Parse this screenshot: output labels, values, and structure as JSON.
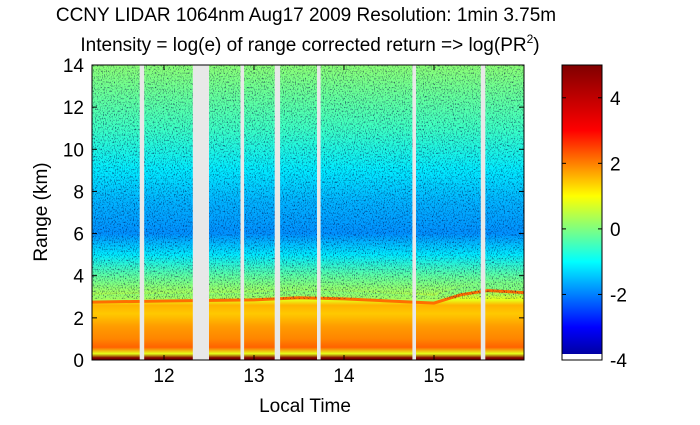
{
  "title": "CCNY LIDAR 1064nm Aug17 2009 Resolution: 1min 3.75m",
  "subtitle_prefix": "Intensity = log(e) of range corrected return => log(PR",
  "subtitle_sup": "2",
  "subtitle_suffix": ")",
  "chart_data": {
    "type": "heatmap",
    "xlabel": "Local Time",
    "ylabel": "Range (km)",
    "xlim": [
      11.2,
      16.0
    ],
    "ylim": [
      0,
      14
    ],
    "x_ticks": [
      12,
      13,
      14,
      15
    ],
    "y_ticks": [
      0,
      2,
      4,
      6,
      8,
      10,
      12,
      14
    ],
    "grid": false,
    "colormap": "jet",
    "colorbar": {
      "range": [
        -4,
        5
      ],
      "ticks": [
        -4,
        -2,
        0,
        2,
        4
      ],
      "position": "right"
    },
    "missing_data_color": "#e8e8e8",
    "data_gaps_local_time": [
      [
        11.73,
        11.78
      ],
      [
        12.32,
        12.5
      ],
      [
        12.85,
        12.89
      ],
      [
        13.23,
        13.29
      ],
      [
        13.7,
        13.74
      ],
      [
        14.76,
        14.8
      ],
      [
        15.52,
        15.57
      ]
    ],
    "profile_intensity_by_range": [
      {
        "range_km": 0.1,
        "value": 5.0
      },
      {
        "range_km": 0.3,
        "value": 1.4
      },
      {
        "range_km": 0.6,
        "value": 3.0
      },
      {
        "range_km": 1.0,
        "value": 2.7
      },
      {
        "range_km": 1.6,
        "value": 2.5
      },
      {
        "range_km": 2.2,
        "value": 2.1
      },
      {
        "range_km": 2.6,
        "value": 2.3
      },
      {
        "range_km": 2.85,
        "value": 1.4
      },
      {
        "range_km": 3.2,
        "value": 0.8
      },
      {
        "range_km": 4.0,
        "value": 0.2
      },
      {
        "range_km": 5.0,
        "value": -0.8
      },
      {
        "range_km": 6.0,
        "value": -1.6
      },
      {
        "range_km": 7.5,
        "value": -1.3
      },
      {
        "range_km": 9.0,
        "value": -0.8
      },
      {
        "range_km": 11.0,
        "value": -0.1
      },
      {
        "range_km": 14.0,
        "value": 0.6
      }
    ],
    "boundary_layer_top_km": [
      {
        "time": 11.2,
        "value": 2.75
      },
      {
        "time": 12.0,
        "value": 2.8
      },
      {
        "time": 13.0,
        "value": 2.85
      },
      {
        "time": 13.5,
        "value": 2.95
      },
      {
        "time": 14.0,
        "value": 2.9
      },
      {
        "time": 14.5,
        "value": 2.8
      },
      {
        "time": 15.0,
        "value": 2.7
      },
      {
        "time": 15.3,
        "value": 3.1
      },
      {
        "time": 15.6,
        "value": 3.3
      },
      {
        "time": 16.0,
        "value": 3.2
      }
    ]
  }
}
